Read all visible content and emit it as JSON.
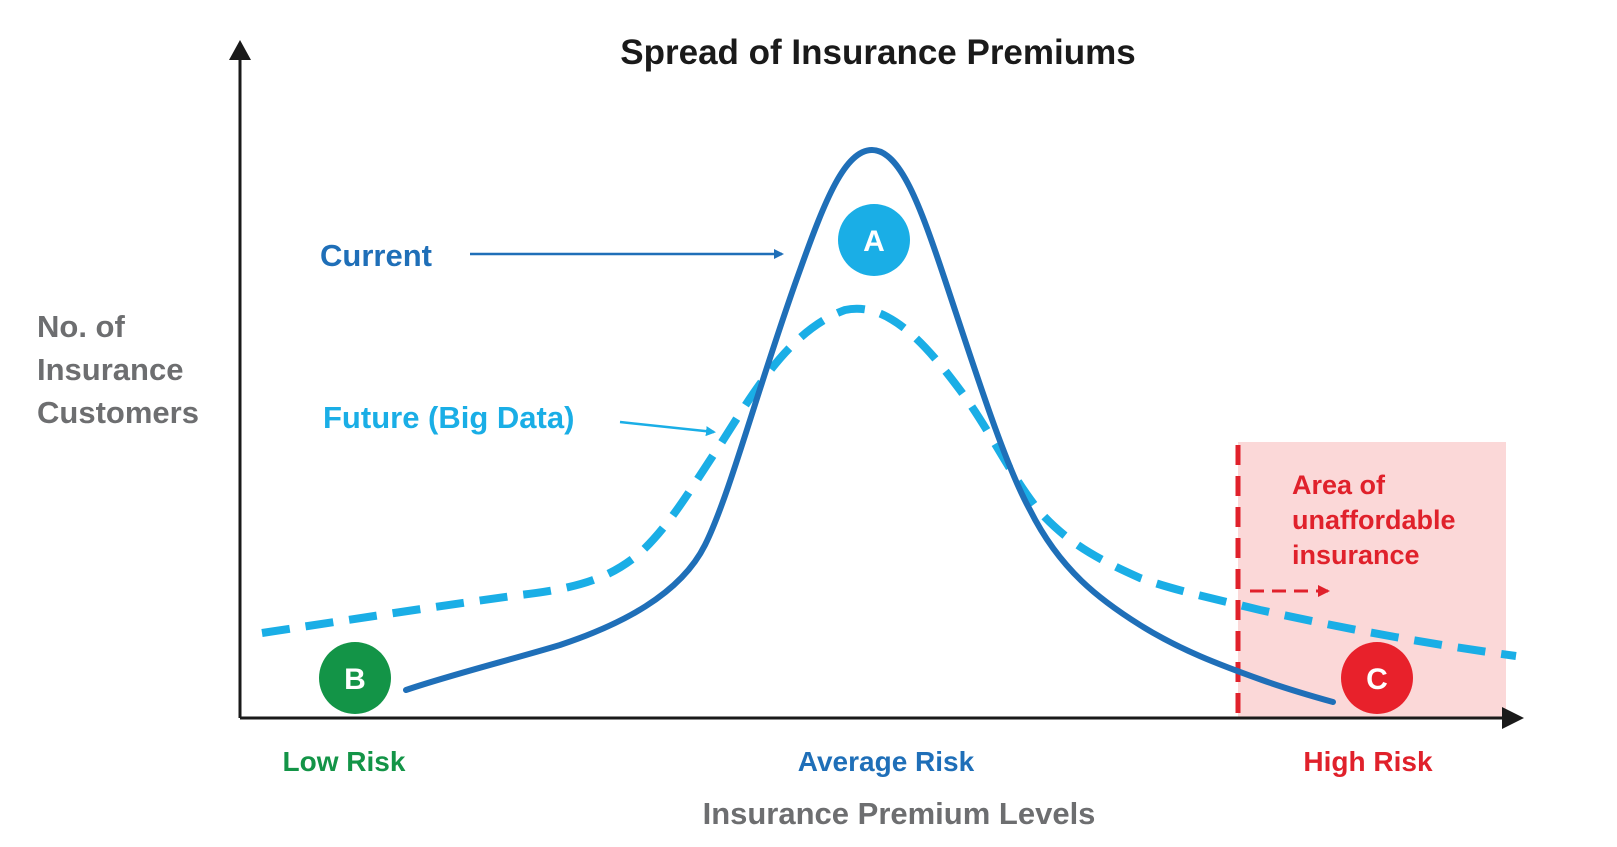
{
  "title": "Spread of Insurance Premiums",
  "y_axis_label": [
    "No. of",
    "Insurance",
    "Customers"
  ],
  "x_axis_label": "Insurance Premium Levels",
  "x_ticks": {
    "low": "Low Risk",
    "average": "Average Risk",
    "high": "High Risk"
  },
  "series": {
    "current": {
      "label": "Current",
      "color": "#1f6fb8",
      "style": "solid"
    },
    "future": {
      "label": "Future (Big Data)",
      "color": "#1aaee6",
      "style": "dashed"
    }
  },
  "unaffordable_area": {
    "label_lines": [
      "Area of",
      "unaffordable",
      "insurance"
    ],
    "fill_color": "#fbd8d8",
    "line_color": "#e0212b"
  },
  "markers": {
    "a": {
      "letter": "A",
      "color": "#1aaee6"
    },
    "b": {
      "letter": "B",
      "color": "#139447"
    },
    "c": {
      "letter": "C",
      "color": "#e8212b"
    }
  },
  "colors": {
    "axis": "#1a1a1a",
    "low_risk": "#139447",
    "average_risk": "#1f6fb8",
    "high_risk": "#e0212b",
    "grey_text": "#6d6e70"
  }
}
